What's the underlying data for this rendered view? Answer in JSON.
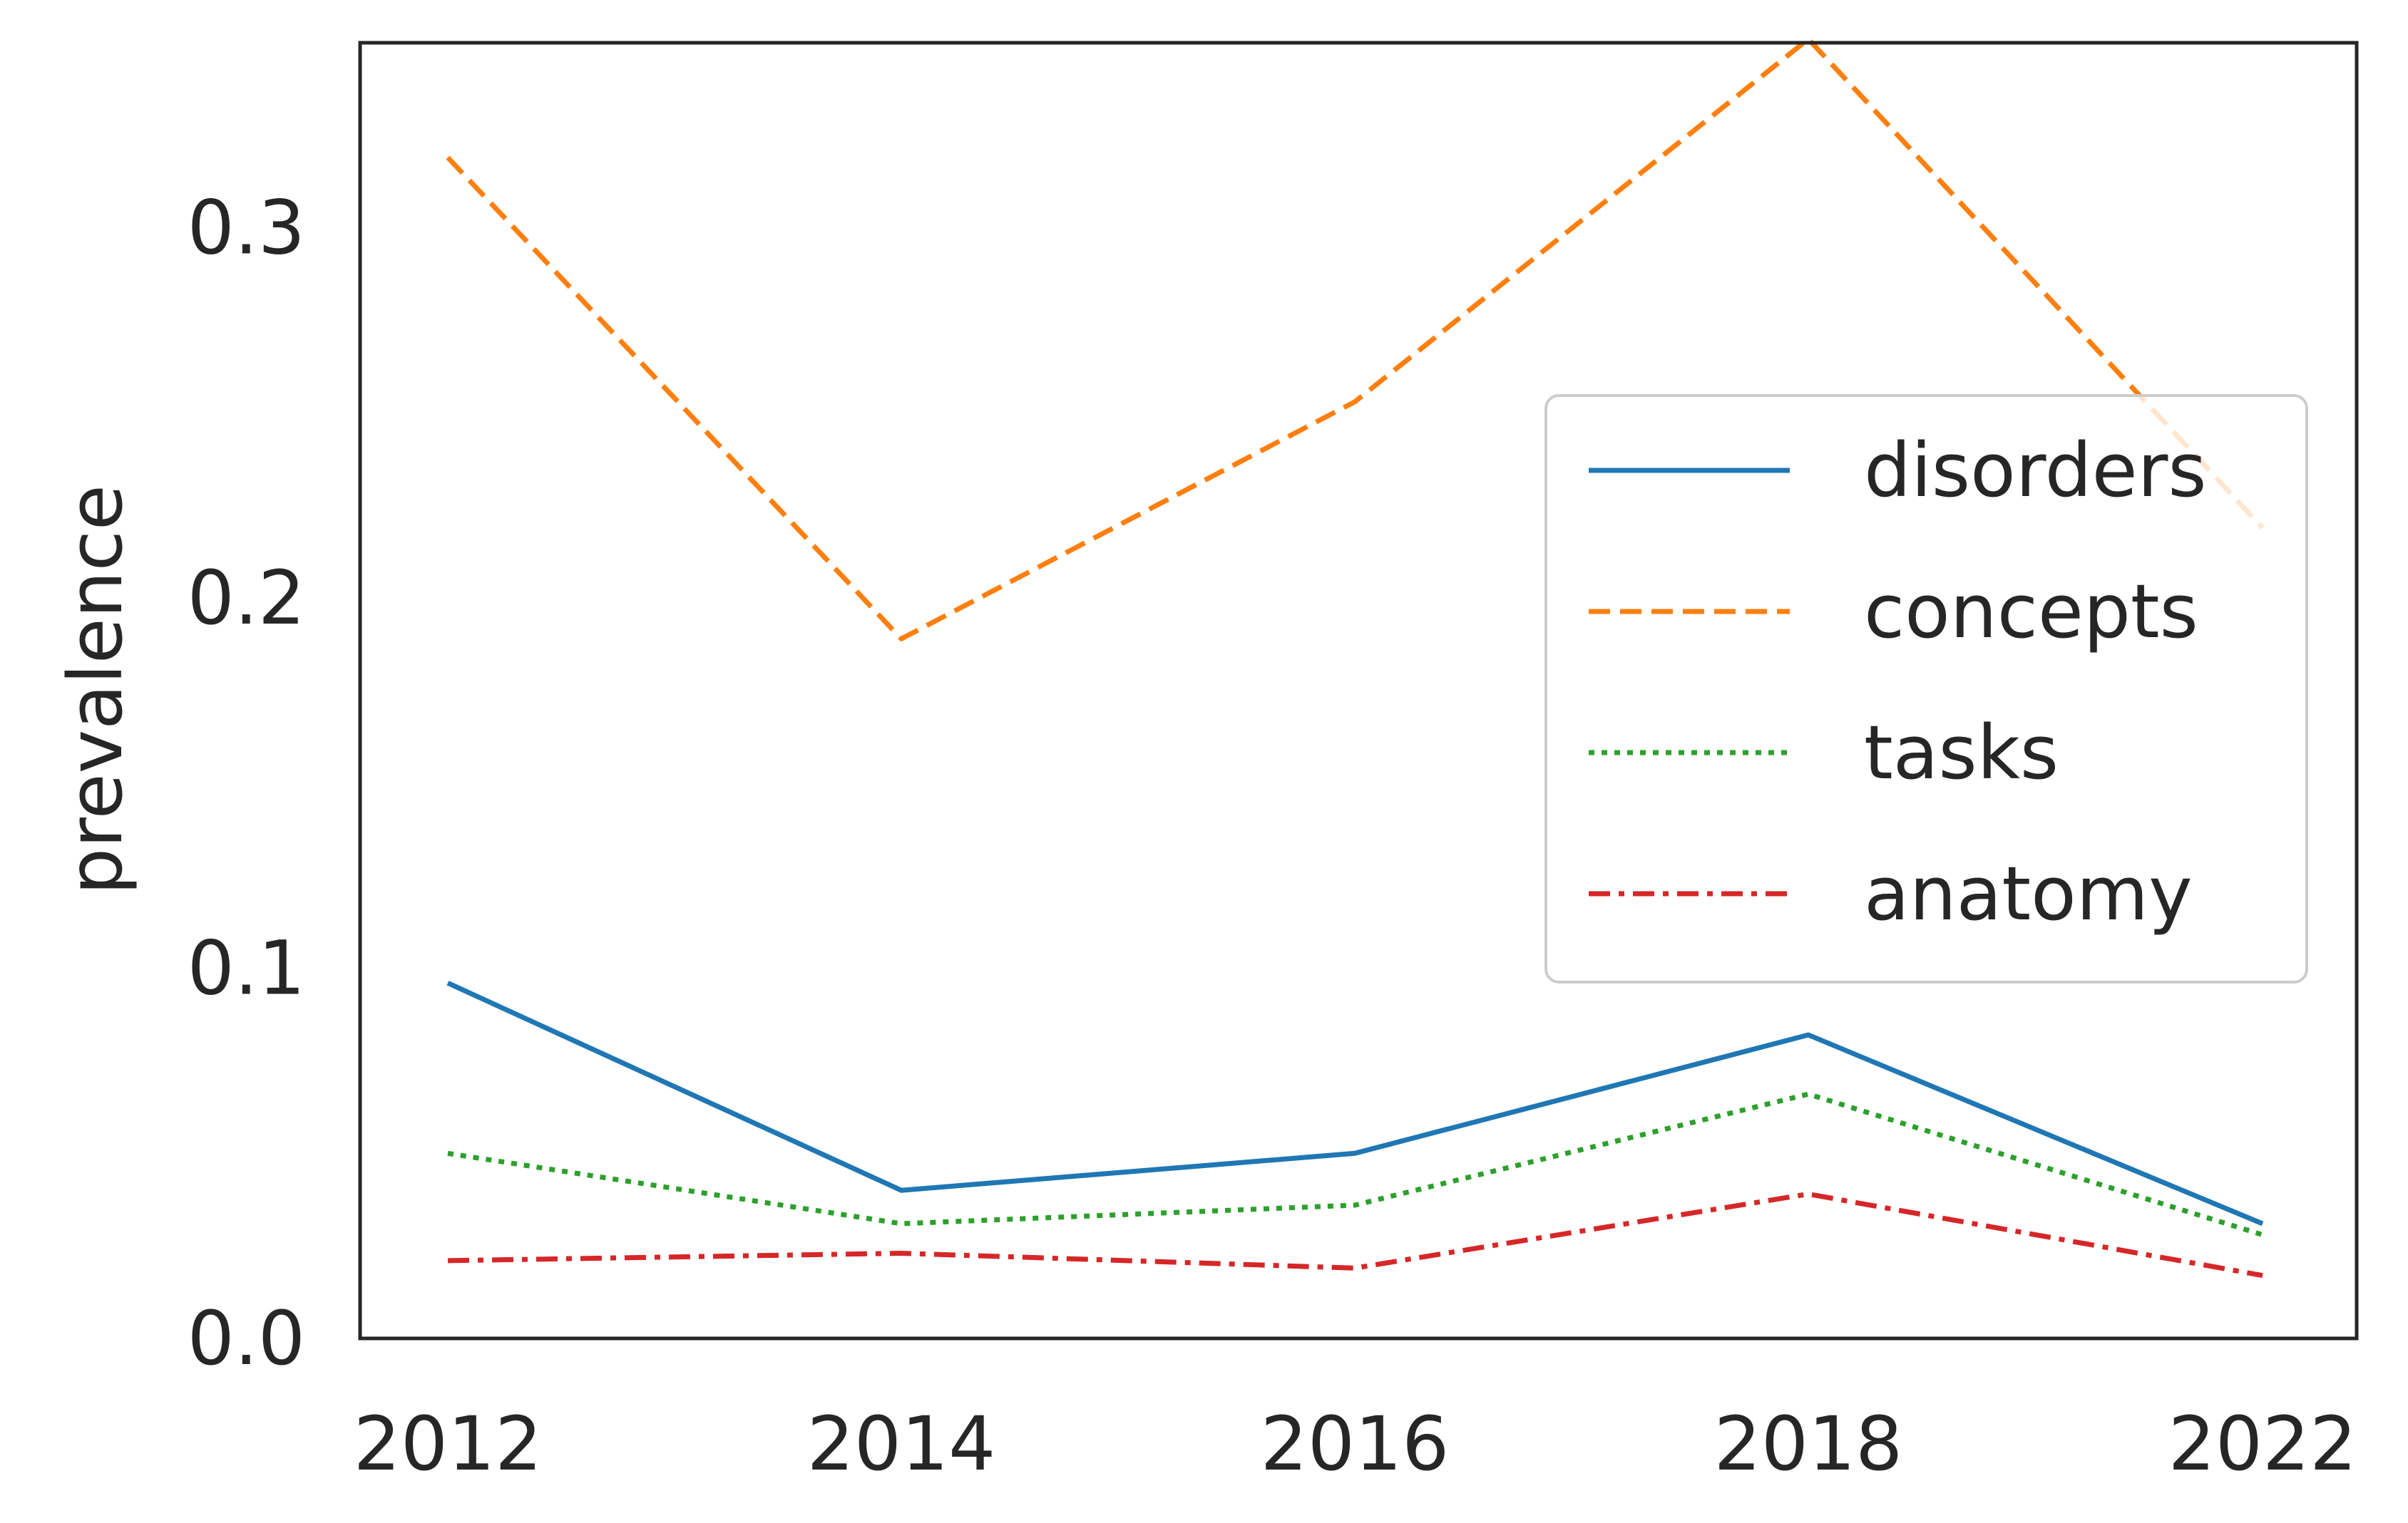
{
  "chart_data": {
    "type": "line",
    "title": "",
    "xlabel": "",
    "ylabel": "prevalence",
    "categories": [
      "2012",
      "2014",
      "2016",
      "2018",
      "2022"
    ],
    "ylim": [
      0.0,
      0.35
    ],
    "yticks": [
      "0.0",
      "0.1",
      "0.2",
      "0.3"
    ],
    "grid": false,
    "legend_position": "right",
    "series": [
      {
        "name": "disorders",
        "color": "#1f77b4",
        "dash": "solid",
        "values": [
          0.096,
          0.04,
          0.05,
          0.082,
          0.031
        ]
      },
      {
        "name": "concepts",
        "color": "#ff7f0e",
        "dash": "dashed",
        "values": [
          0.319,
          0.189,
          0.253,
          0.351,
          0.219
        ]
      },
      {
        "name": "tasks",
        "color": "#2ca02c",
        "dash": "dotted",
        "values": [
          0.05,
          0.031,
          0.036,
          0.066,
          0.028
        ]
      },
      {
        "name": "anatomy",
        "color": "#d62728",
        "dash": "dashdot",
        "values": [
          0.021,
          0.023,
          0.019,
          0.039,
          0.017
        ]
      }
    ]
  }
}
